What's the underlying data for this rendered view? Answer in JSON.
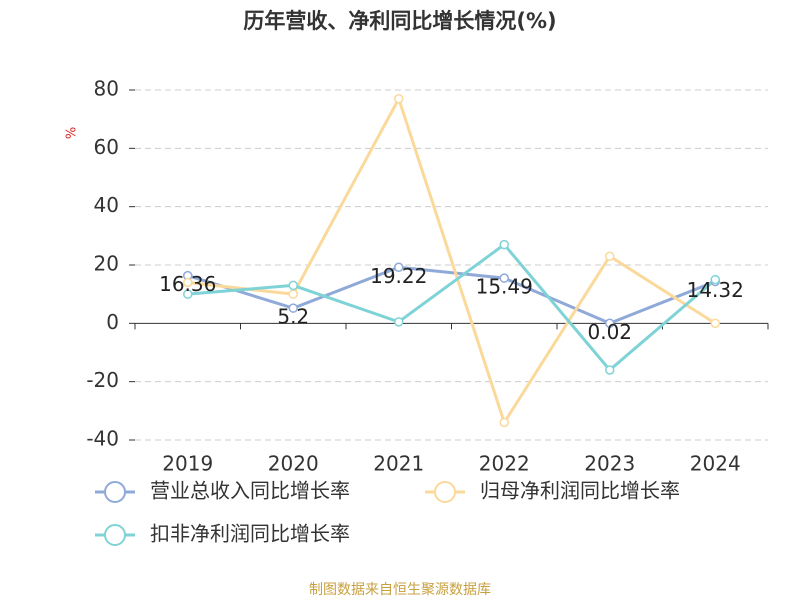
{
  "chart_data": {
    "type": "line",
    "title": "历年营收、净利同比增长情况(%)",
    "y_label": "%",
    "categories": [
      "2019",
      "2020",
      "2021",
      "2022",
      "2023",
      "2024"
    ],
    "series": [
      {
        "name": "营业总收入同比增长率",
        "color": "#8fa9d8",
        "values": [
          16.36,
          5.2,
          19.22,
          15.49,
          0.02,
          14.32
        ],
        "show_labels": true
      },
      {
        "name": "归母净利润同比增长率",
        "color": "#fbd99a",
        "values": [
          14,
          10,
          77,
          -34,
          23,
          0
        ],
        "show_labels": false
      },
      {
        "name": "扣非净利润同比增长率",
        "color": "#7fd3d6",
        "values": [
          10,
          13,
          0.5,
          27,
          -16,
          15
        ],
        "show_labels": false
      }
    ],
    "ylim": [
      -40,
      80
    ],
    "yticks": [
      -40,
      -20,
      0,
      20,
      40,
      60,
      80
    ],
    "grid": true,
    "source": "制图数据来自恒生聚源数据库"
  }
}
